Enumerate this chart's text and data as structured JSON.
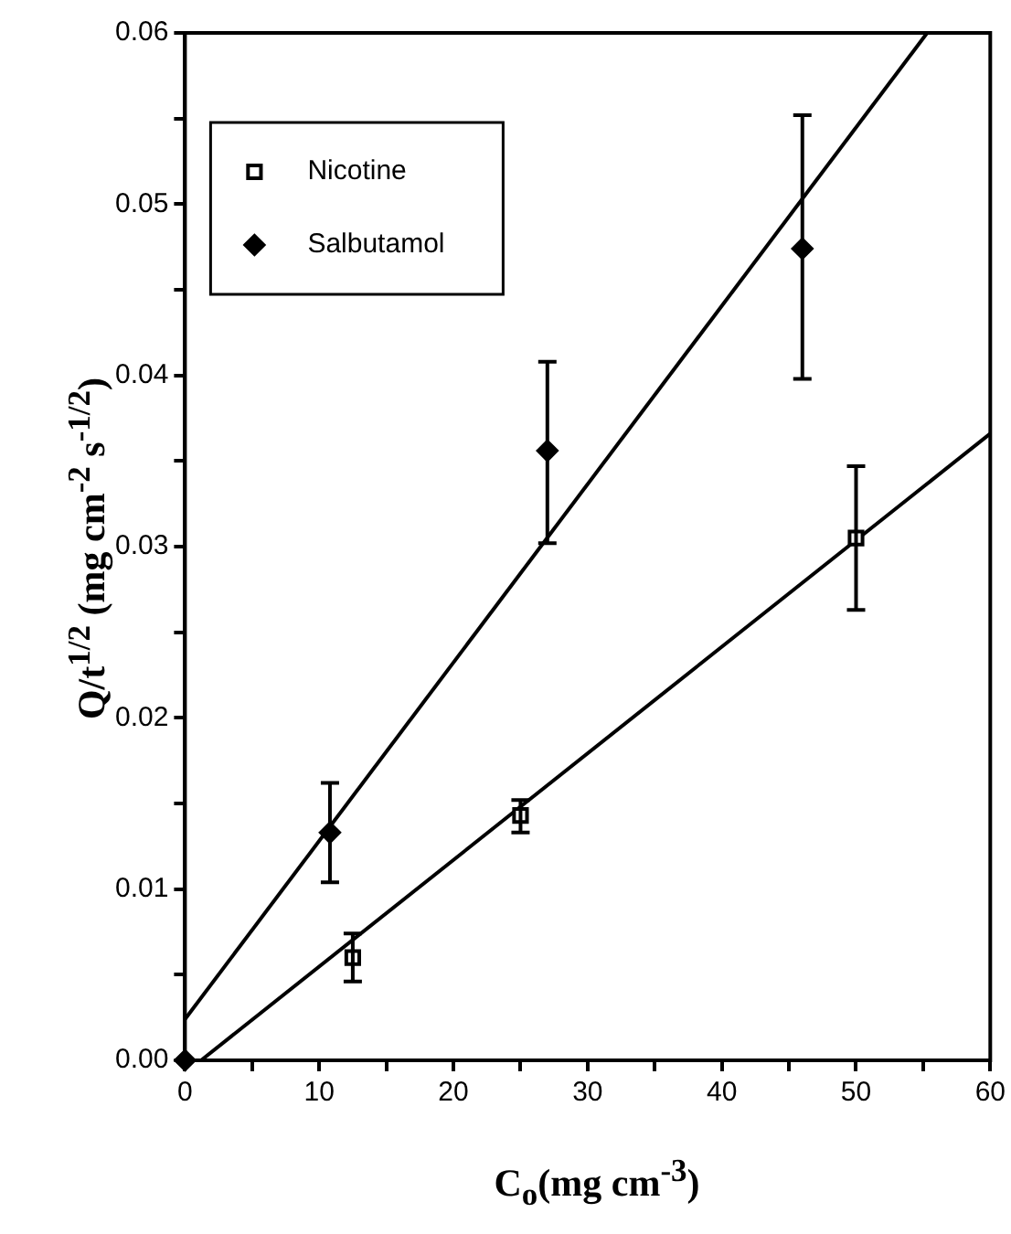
{
  "chart_data": {
    "type": "scatter",
    "xlabel": "C$_{o}$(mg cm$^{-3}$)",
    "ylabel": "Q/t$^{1/2}$ (mg cm$^{-2}$ s$^{-1/2}$)",
    "xlim": [
      0,
      60
    ],
    "ylim": [
      0,
      0.06
    ],
    "xticks": [
      0,
      {
        "value": 5,
        "label": null
      },
      10,
      {
        "value": 15,
        "label": null
      },
      20,
      {
        "value": 25,
        "label": null
      },
      30,
      {
        "value": 35,
        "label": null
      },
      40,
      {
        "value": 45,
        "label": null
      },
      50,
      {
        "value": 55,
        "label": null
      },
      60
    ],
    "yticks": [
      {
        "value": 0,
        "label": "0.00"
      },
      {
        "value": 0.005,
        "label": null
      },
      {
        "value": 0.01,
        "label": "0.01"
      },
      {
        "value": 0.015,
        "label": null
      },
      {
        "value": 0.02,
        "label": "0.02"
      },
      {
        "value": 0.025,
        "label": null
      },
      {
        "value": 0.03,
        "label": "0.03"
      },
      {
        "value": 0.035,
        "label": null
      },
      {
        "value": 0.04,
        "label": "0.04"
      },
      {
        "value": 0.045,
        "label": null
      },
      {
        "value": 0.05,
        "label": "0.05"
      },
      {
        "value": 0.055,
        "label": null
      },
      {
        "value": 0.06,
        "label": "0.06"
      }
    ],
    "grid": false,
    "legend": "top left",
    "series": [
      {
        "name": "Nicotine",
        "color": "#000000",
        "marker": "square",
        "x": [
          12.5,
          25,
          50
        ],
        "values": [
          0.006,
          0.0143,
          0.0305
        ],
        "errors": [
          [
            0.0046,
            0.0074
          ],
          [
            0.0133,
            0.0152
          ],
          [
            0.0263,
            0.0347
          ]
        ]
      },
      {
        "name": "Salbutamol",
        "color": "#000000",
        "marker": "diamond",
        "x": [
          0,
          10.8,
          27,
          46
        ],
        "values": [
          0,
          0.0133,
          0.0356,
          0.0474
        ],
        "errors": [
          null,
          [
            0.0104,
            0.0162
          ],
          [
            0.0302,
            0.0408
          ],
          [
            0.0398,
            0.0552
          ]
        ]
      },
      {
        "type": "line",
        "color": "#000000",
        "marker": "none",
        "x": [
          1.2,
          60
        ],
        "values": [
          0,
          0.0366
        ]
      },
      {
        "type": "line",
        "color": "#000000",
        "marker": "none",
        "x": [
          0,
          55.3
        ],
        "values": [
          0.0024,
          0.06
        ]
      }
    ]
  }
}
